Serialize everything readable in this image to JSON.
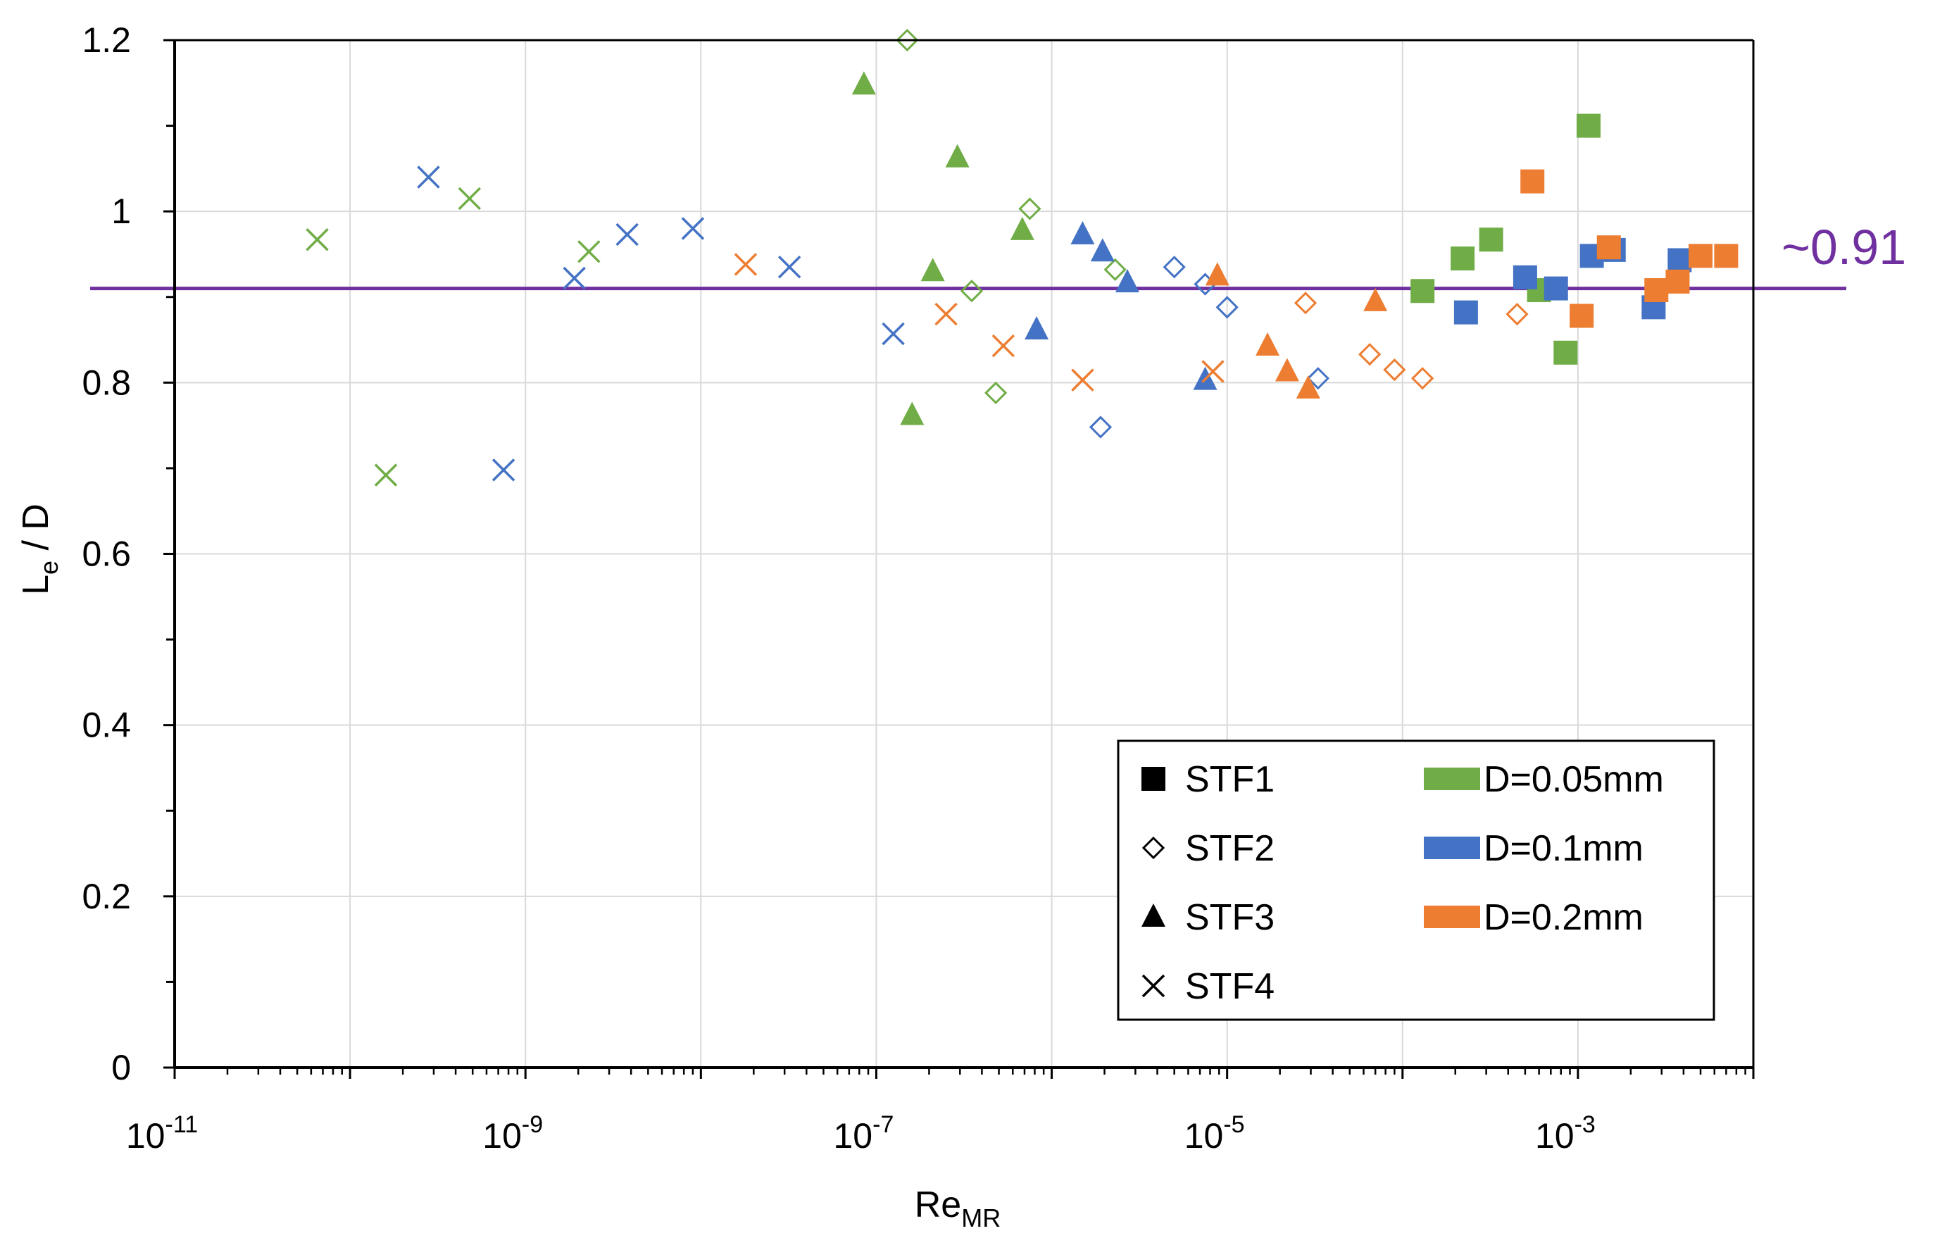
{
  "chart_data": {
    "type": "scatter",
    "x_scale": "log",
    "xlim": [
      1e-11,
      0.01
    ],
    "ylim": [
      0,
      1.2
    ],
    "grid": true,
    "xlabel": {
      "main": "Re",
      "sub": "MR"
    },
    "ylabel": {
      "main": "L",
      "sub": "e",
      "rest": " / D"
    },
    "x_ticks": [
      {
        "value": 1e-11,
        "base": "10",
        "exp": "-11"
      },
      {
        "value": 1e-09,
        "base": "10",
        "exp": "-9"
      },
      {
        "value": 1e-07,
        "base": "10",
        "exp": "-7"
      },
      {
        "value": 1e-05,
        "base": "10",
        "exp": "-5"
      },
      {
        "value": 0.001,
        "base": "10",
        "exp": "-3"
      }
    ],
    "y_ticks": [
      {
        "value": 0,
        "label": "0"
      },
      {
        "value": 0.2,
        "label": "0.2"
      },
      {
        "value": 0.4,
        "label": "0.4"
      },
      {
        "value": 0.6,
        "label": "0.6"
      },
      {
        "value": 0.8,
        "label": "0.8"
      },
      {
        "value": 1.0,
        "label": "1"
      },
      {
        "value": 1.2,
        "label": "1.2"
      }
    ],
    "reference_line": {
      "y": 0.91,
      "label": "~0.91",
      "color": "#7030a0"
    },
    "colors": {
      "D=0.05mm": "#70ad47",
      "D=0.1mm": "#4472c4",
      "D=0.2mm": "#ed7d31"
    },
    "legend": {
      "position": "bottom-right",
      "markers": [
        {
          "label": "STF1",
          "shape": "square"
        },
        {
          "label": "STF2",
          "shape": "diamond"
        },
        {
          "label": "STF3",
          "shape": "triangle"
        },
        {
          "label": "STF4",
          "shape": "cross"
        }
      ],
      "sizes": [
        {
          "label": "D=0.05mm",
          "color": "#70ad47"
        },
        {
          "label": "D=0.1mm",
          "color": "#4472c4"
        },
        {
          "label": "D=0.2mm",
          "color": "#ed7d31"
        }
      ]
    },
    "series": [
      {
        "name": "STF1 D=0.05mm",
        "shape": "square",
        "color": "#70ad47",
        "points": [
          [
            0.00013,
            0.907
          ],
          [
            0.00022,
            0.945
          ],
          [
            0.00032,
            0.967
          ],
          [
            0.0006,
            0.908
          ],
          [
            0.00085,
            0.835
          ],
          [
            0.00115,
            1.1
          ]
        ]
      },
      {
        "name": "STF1 D=0.1mm",
        "shape": "square",
        "color": "#4472c4",
        "points": [
          [
            0.00023,
            0.882
          ],
          [
            0.0005,
            0.923
          ],
          [
            0.00075,
            0.91
          ],
          [
            0.0012,
            0.948
          ],
          [
            0.0016,
            0.955
          ],
          [
            0.0027,
            0.888
          ],
          [
            0.0038,
            0.943
          ]
        ]
      },
      {
        "name": "STF1 D=0.2mm",
        "shape": "square",
        "color": "#ed7d31",
        "points": [
          [
            0.00055,
            1.035
          ],
          [
            0.00105,
            0.878
          ],
          [
            0.0015,
            0.958
          ],
          [
            0.0028,
            0.908
          ],
          [
            0.0037,
            0.918
          ],
          [
            0.005,
            0.948
          ],
          [
            0.007,
            0.948
          ]
        ]
      },
      {
        "name": "STF2 D=0.05mm",
        "shape": "diamond",
        "color": "#70ad47",
        "points": [
          [
            1.5e-07,
            1.2
          ],
          [
            3.5e-07,
            0.907
          ],
          [
            4.8e-07,
            0.788
          ],
          [
            7.5e-07,
            1.003
          ],
          [
            2.3e-06,
            0.932
          ]
        ]
      },
      {
        "name": "STF2 D=0.1mm",
        "shape": "diamond",
        "color": "#4472c4",
        "points": [
          [
            1.9e-06,
            0.748
          ],
          [
            5e-06,
            0.935
          ],
          [
            7.5e-06,
            0.915
          ],
          [
            1e-05,
            0.888
          ],
          [
            3.3e-05,
            0.805
          ]
        ]
      },
      {
        "name": "STF2 D=0.2mm",
        "shape": "diamond",
        "color": "#ed7d31",
        "points": [
          [
            2.8e-05,
            0.893
          ],
          [
            6.5e-05,
            0.833
          ],
          [
            9e-05,
            0.815
          ],
          [
            0.00013,
            0.805
          ],
          [
            0.00045,
            0.88
          ]
        ]
      },
      {
        "name": "STF3 D=0.05mm",
        "shape": "triangle",
        "color": "#70ad47",
        "points": [
          [
            8.5e-08,
            1.148
          ],
          [
            1.6e-07,
            0.762
          ],
          [
            2.1e-07,
            0.93
          ],
          [
            2.9e-07,
            1.063
          ],
          [
            6.8e-07,
            0.978
          ]
        ]
      },
      {
        "name": "STF3 D=0.1mm",
        "shape": "triangle",
        "color": "#4472c4",
        "points": [
          [
            8.2e-07,
            0.862
          ],
          [
            1.5e-06,
            0.973
          ],
          [
            1.95e-06,
            0.953
          ],
          [
            2.7e-06,
            0.917
          ],
          [
            7.5e-06,
            0.803
          ]
        ]
      },
      {
        "name": "STF3 D=0.2mm",
        "shape": "triangle",
        "color": "#ed7d31",
        "points": [
          [
            8.8e-06,
            0.925
          ],
          [
            1.7e-05,
            0.843
          ],
          [
            2.2e-05,
            0.813
          ],
          [
            2.9e-05,
            0.793
          ],
          [
            7e-05,
            0.895
          ]
        ]
      },
      {
        "name": "STF4 D=0.05mm",
        "shape": "cross",
        "color": "#70ad47",
        "points": [
          [
            6.5e-11,
            0.967
          ],
          [
            1.6e-10,
            0.692
          ],
          [
            4.8e-10,
            1.015
          ],
          [
            2.3e-09,
            0.953
          ]
        ]
      },
      {
        "name": "STF4 D=0.1mm",
        "shape": "cross",
        "color": "#4472c4",
        "points": [
          [
            2.8e-10,
            1.04
          ],
          [
            7.5e-10,
            0.698
          ],
          [
            1.9e-09,
            0.922
          ],
          [
            3.8e-09,
            0.973
          ],
          [
            9e-09,
            0.98
          ],
          [
            3.2e-08,
            0.935
          ],
          [
            1.25e-07,
            0.857
          ]
        ]
      },
      {
        "name": "STF4 D=0.2mm",
        "shape": "cross",
        "color": "#ed7d31",
        "points": [
          [
            1.8e-08,
            0.938
          ],
          [
            2.5e-07,
            0.88
          ],
          [
            5.3e-07,
            0.843
          ],
          [
            1.5e-06,
            0.803
          ],
          [
            8.3e-06,
            0.813
          ]
        ]
      }
    ]
  }
}
